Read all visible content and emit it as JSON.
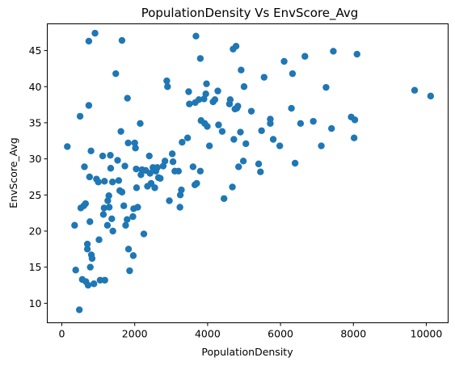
{
  "chart_data": {
    "type": "scatter",
    "title": "PopulationDensity Vs EnvScore_Avg",
    "xlabel": "PopulationDensity",
    "ylabel": "EnvScore_Avg",
    "xlim": [
      -400,
      10600
    ],
    "ylim": [
      7.3,
      48.7
    ],
    "xticks": [
      0,
      2000,
      4000,
      6000,
      8000,
      10000
    ],
    "yticks": [
      10,
      15,
      20,
      25,
      30,
      35,
      40,
      45
    ],
    "grid": false,
    "marker_color": "#1f77b4",
    "series": [
      {
        "points": [
          [
            150,
            31.7
          ],
          [
            350,
            20.8
          ],
          [
            380,
            14.6
          ],
          [
            480,
            9.1
          ],
          [
            500,
            35.9
          ],
          [
            520,
            23.2
          ],
          [
            560,
            13.3
          ],
          [
            600,
            23.5
          ],
          [
            620,
            28.9
          ],
          [
            650,
            23.8
          ],
          [
            660,
            13.0
          ],
          [
            700,
            18.2
          ],
          [
            700,
            17.5
          ],
          [
            720,
            12.5
          ],
          [
            740,
            46.3
          ],
          [
            740,
            37.4
          ],
          [
            760,
            27.5
          ],
          [
            770,
            21.3
          ],
          [
            780,
            15.0
          ],
          [
            800,
            31.1
          ],
          [
            810,
            16.7
          ],
          [
            830,
            16.2
          ],
          [
            880,
            12.7
          ],
          [
            910,
            47.4
          ],
          [
            950,
            27.2
          ],
          [
            1000,
            26.8
          ],
          [
            1020,
            18.8
          ],
          [
            1050,
            13.2
          ],
          [
            1120,
            30.4
          ],
          [
            1140,
            22.3
          ],
          [
            1160,
            23.2
          ],
          [
            1170,
            26.9
          ],
          [
            1180,
            13.2
          ],
          [
            1250,
            20.8
          ],
          [
            1260,
            24.2
          ],
          [
            1290,
            24.9
          ],
          [
            1300,
            23.3
          ],
          [
            1330,
            30.5
          ],
          [
            1340,
            28.7
          ],
          [
            1370,
            21.7
          ],
          [
            1390,
            26.8
          ],
          [
            1400,
            20.0
          ],
          [
            1480,
            41.8
          ],
          [
            1530,
            29.8
          ],
          [
            1560,
            27.0
          ],
          [
            1590,
            25.6
          ],
          [
            1620,
            33.8
          ],
          [
            1650,
            46.4
          ],
          [
            1650,
            25.4
          ],
          [
            1700,
            23.5
          ],
          [
            1730,
            29.0
          ],
          [
            1750,
            20.8
          ],
          [
            1790,
            21.6
          ],
          [
            1800,
            38.4
          ],
          [
            1820,
            32.2
          ],
          [
            1830,
            17.5
          ],
          [
            1860,
            14.5
          ],
          [
            1950,
            22.0
          ],
          [
            1960,
            16.6
          ],
          [
            1970,
            23.1
          ],
          [
            2000,
            32.2
          ],
          [
            2020,
            31.5
          ],
          [
            2040,
            28.6
          ],
          [
            2050,
            26.0
          ],
          [
            2080,
            23.3
          ],
          [
            2150,
            34.9
          ],
          [
            2170,
            27.8
          ],
          [
            2200,
            28.5
          ],
          [
            2250,
            19.6
          ],
          [
            2300,
            28.4
          ],
          [
            2350,
            26.2
          ],
          [
            2400,
            30.4
          ],
          [
            2420,
            28.0
          ],
          [
            2450,
            26.6
          ],
          [
            2500,
            28.8
          ],
          [
            2550,
            26.0
          ],
          [
            2580,
            28.3
          ],
          [
            2620,
            28.8
          ],
          [
            2650,
            27.4
          ],
          [
            2700,
            27.3
          ],
          [
            2780,
            29.0
          ],
          [
            2830,
            29.7
          ],
          [
            2880,
            40.8
          ],
          [
            2900,
            40.0
          ],
          [
            2950,
            24.2
          ],
          [
            3030,
            30.7
          ],
          [
            3050,
            29.6
          ],
          [
            3100,
            28.3
          ],
          [
            3200,
            28.3
          ],
          [
            3240,
            23.3
          ],
          [
            3250,
            25.0
          ],
          [
            3280,
            25.7
          ],
          [
            3300,
            32.3
          ],
          [
            3450,
            32.9
          ],
          [
            3480,
            39.3
          ],
          [
            3500,
            37.6
          ],
          [
            3600,
            28.9
          ],
          [
            3650,
            26.4
          ],
          [
            3660,
            37.8
          ],
          [
            3680,
            47.0
          ],
          [
            3700,
            26.6
          ],
          [
            3760,
            38.2
          ],
          [
            3800,
            28.3
          ],
          [
            3800,
            43.9
          ],
          [
            3820,
            35.3
          ],
          [
            3900,
            38.3
          ],
          [
            3920,
            34.9
          ],
          [
            3950,
            39.0
          ],
          [
            3970,
            40.4
          ],
          [
            3990,
            34.5
          ],
          [
            4050,
            31.8
          ],
          [
            4150,
            37.9
          ],
          [
            4200,
            38.2
          ],
          [
            4280,
            39.4
          ],
          [
            4300,
            34.7
          ],
          [
            4400,
            33.8
          ],
          [
            4450,
            24.5
          ],
          [
            4600,
            37.6
          ],
          [
            4620,
            38.2
          ],
          [
            4680,
            26.1
          ],
          [
            4700,
            45.2
          ],
          [
            4720,
            32.7
          ],
          [
            4750,
            36.9
          ],
          [
            4780,
            45.6
          ],
          [
            4800,
            37.0
          ],
          [
            4830,
            37.3
          ],
          [
            4850,
            28.9
          ],
          [
            4900,
            33.7
          ],
          [
            4920,
            42.3
          ],
          [
            4980,
            29.7
          ],
          [
            5000,
            40.0
          ],
          [
            5050,
            32.1
          ],
          [
            5200,
            36.6
          ],
          [
            5400,
            29.3
          ],
          [
            5450,
            28.2
          ],
          [
            5480,
            33.9
          ],
          [
            5550,
            41.3
          ],
          [
            5720,
            35.5
          ],
          [
            5720,
            34.9
          ],
          [
            5800,
            32.7
          ],
          [
            5980,
            31.8
          ],
          [
            6100,
            43.5
          ],
          [
            6300,
            37.0
          ],
          [
            6330,
            41.8
          ],
          [
            6400,
            29.4
          ],
          [
            6550,
            34.9
          ],
          [
            6670,
            44.2
          ],
          [
            6900,
            35.2
          ],
          [
            7120,
            31.8
          ],
          [
            7250,
            39.9
          ],
          [
            7400,
            34.2
          ],
          [
            7450,
            44.9
          ],
          [
            7940,
            35.8
          ],
          [
            8020,
            32.9
          ],
          [
            8040,
            35.4
          ],
          [
            8100,
            44.5
          ],
          [
            9680,
            39.5
          ],
          [
            10120,
            38.7
          ]
        ]
      }
    ]
  }
}
